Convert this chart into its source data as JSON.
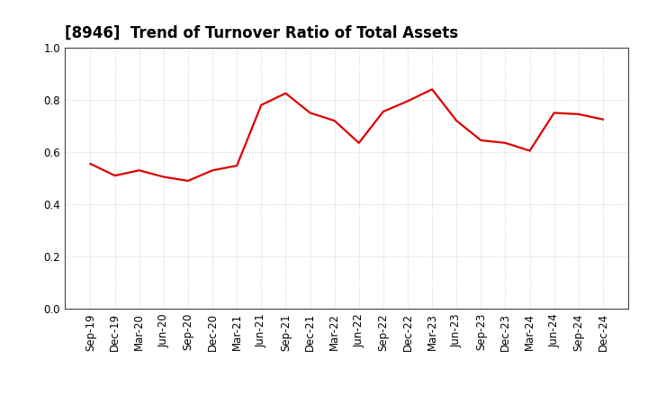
{
  "title": "[8946]  Trend of Turnover Ratio of Total Assets",
  "x_labels": [
    "Sep-19",
    "Dec-19",
    "Mar-20",
    "Jun-20",
    "Sep-20",
    "Dec-20",
    "Mar-21",
    "Jun-21",
    "Sep-21",
    "Dec-21",
    "Mar-22",
    "Jun-22",
    "Sep-22",
    "Dec-22",
    "Mar-23",
    "Jun-23",
    "Sep-23",
    "Dec-23",
    "Mar-24",
    "Jun-24",
    "Sep-24",
    "Dec-24"
  ],
  "y_values": [
    0.555,
    0.51,
    0.53,
    0.505,
    0.49,
    0.53,
    0.548,
    0.78,
    0.825,
    0.75,
    0.72,
    0.635,
    0.755,
    0.795,
    0.84,
    0.72,
    0.645,
    0.635,
    0.605,
    0.75,
    0.745,
    0.725
  ],
  "line_color": "#dd0000",
  "line_width": 1.6,
  "ylim": [
    0.0,
    1.0
  ],
  "yticks": [
    0.0,
    0.2,
    0.4,
    0.6,
    0.8,
    1.0
  ],
  "background_color": "#ffffff",
  "grid_color": "#bbbbbb",
  "title_fontsize": 12,
  "tick_fontsize": 8.5
}
